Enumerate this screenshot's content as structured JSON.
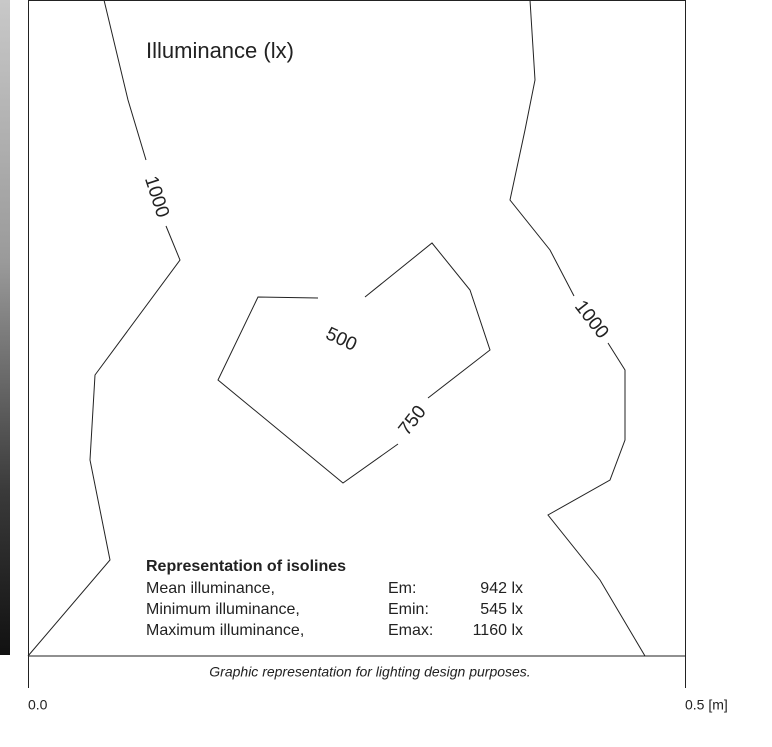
{
  "diagram": {
    "title": "Illuminance (lx)",
    "isoline_labels": [
      "1000",
      "1000",
      "500",
      "750"
    ],
    "summary": {
      "heading": "Representation of isolines",
      "rows": [
        [
          "Mean illuminance,",
          "Em:",
          "942 lx"
        ],
        [
          "Minimum illuminance,",
          "Emin:",
          "545 lx"
        ],
        [
          "Maximum illuminance,",
          "Emax:",
          "1160 lx"
        ]
      ]
    },
    "footer": "Graphic representation for lighting design purposes.",
    "axis_labels": [
      "0.0",
      "0.5 [m]"
    ]
  }
}
